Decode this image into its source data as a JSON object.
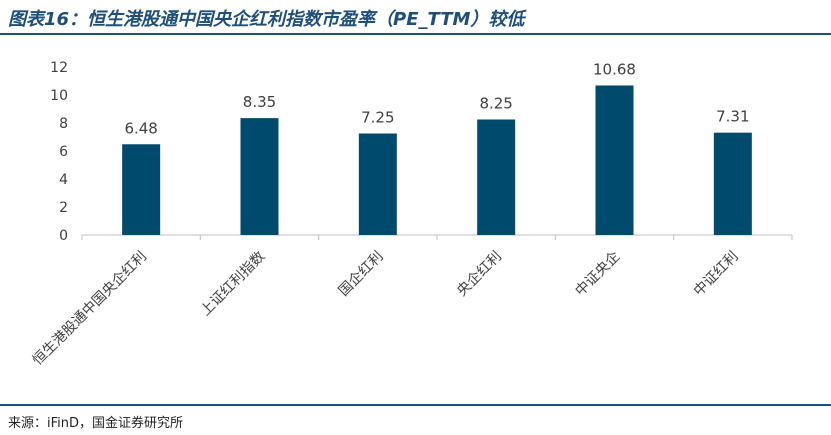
{
  "header": {
    "title": "图表16：恒生港股通中国央企红利指数市盈率（PE_TTM）较低"
  },
  "footer": {
    "source": "来源：iFinD，国金证券研究所"
  },
  "colors": {
    "bar": "#004a6e",
    "rule": "#1f4e79",
    "axis": "#bfbfbf",
    "text": "#404040"
  },
  "chart_data": {
    "type": "bar",
    "categories": [
      "恒生港股通中国央企红利",
      "上证红利指数",
      "国企红利",
      "央企红利",
      "中证央企",
      "中证红利"
    ],
    "values": [
      6.48,
      8.35,
      7.25,
      8.25,
      10.68,
      7.31
    ],
    "data_labels": [
      "6.48",
      "8.35",
      "7.25",
      "8.25",
      "10.68",
      "7.31"
    ],
    "yticks": [
      "0",
      "2",
      "4",
      "6",
      "8",
      "10",
      "12"
    ],
    "ylim": [
      0,
      12
    ],
    "grid": false,
    "legend": "none"
  }
}
